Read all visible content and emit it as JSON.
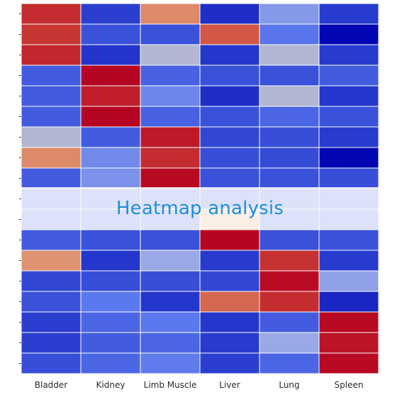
{
  "banner": {
    "text": "Heatmap analysis"
  },
  "chart_data": {
    "type": "heatmap",
    "title": "",
    "xlabel": "",
    "ylabel": "",
    "categories": [
      "Bladder",
      "Kidney",
      "Limb Muscle",
      "Liver",
      "Lung",
      "Spleen"
    ],
    "row_count": 18,
    "value_range": [
      -1,
      1
    ],
    "colorscale": [
      [
        0.0,
        "#0000b0"
      ],
      [
        0.15,
        "#2a3fd0"
      ],
      [
        0.3,
        "#5b79ee"
      ],
      [
        0.45,
        "#9aa9e6"
      ],
      [
        0.55,
        "#c9c2bd"
      ],
      [
        0.7,
        "#e2a07c"
      ],
      [
        0.85,
        "#cf4a3a"
      ],
      [
        1.0,
        "#b40020"
      ]
    ],
    "values": [
      [
        0.82,
        -0.7,
        0.48,
        -0.78,
        -0.2,
        -0.72
      ],
      [
        0.78,
        -0.6,
        -0.6,
        0.65,
        -0.42,
        -0.98
      ],
      [
        0.84,
        -0.75,
        0.0,
        -0.74,
        0.0,
        -0.72
      ],
      [
        -0.55,
        0.98,
        -0.52,
        -0.6,
        -0.6,
        -0.55
      ],
      [
        -0.55,
        0.88,
        -0.32,
        -0.78,
        0.0,
        -0.74
      ],
      [
        -0.55,
        0.98,
        -0.52,
        -0.6,
        -0.5,
        -0.6
      ],
      [
        0.0,
        -0.55,
        0.9,
        -0.66,
        -0.62,
        -0.72
      ],
      [
        0.48,
        -0.3,
        0.82,
        -0.62,
        -0.64,
        -0.98
      ],
      [
        -0.55,
        -0.25,
        0.96,
        -0.6,
        -0.6,
        -0.62
      ],
      [
        -0.55,
        -0.55,
        -0.55,
        -0.55,
        -0.55,
        -0.55
      ],
      [
        -0.55,
        -0.55,
        -0.55,
        0.4,
        -0.55,
        -0.55
      ],
      [
        -0.55,
        -0.6,
        -0.6,
        0.98,
        -0.6,
        -0.6
      ],
      [
        0.45,
        -0.74,
        -0.1,
        -0.72,
        0.8,
        -0.72
      ],
      [
        -0.66,
        -0.62,
        -0.62,
        -0.66,
        0.95,
        -0.15
      ],
      [
        -0.6,
        -0.4,
        -0.74,
        0.6,
        0.82,
        -0.82
      ],
      [
        -0.7,
        -0.5,
        -0.4,
        -0.74,
        -0.55,
        0.96
      ],
      [
        -0.7,
        -0.55,
        -0.5,
        -0.72,
        -0.1,
        0.92
      ],
      [
        -0.62,
        -0.5,
        -0.38,
        -0.7,
        -0.5,
        0.96
      ]
    ]
  }
}
